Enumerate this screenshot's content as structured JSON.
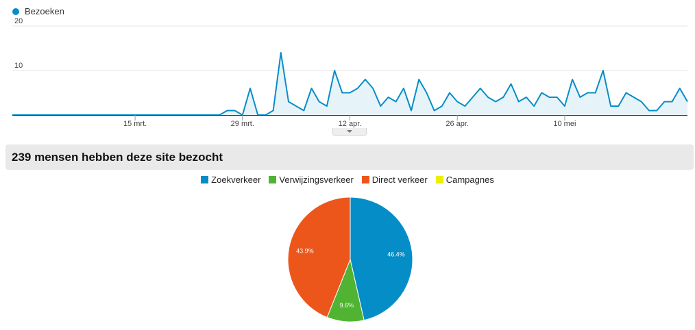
{
  "legend_top": {
    "label": "Bezoeken",
    "color": "#058dc7"
  },
  "summary": {
    "text": "239 mensen hebben deze site bezocht"
  },
  "colors": {
    "line": "#058dc7",
    "area": "#e6f3f9",
    "grid": "#e6e6e6",
    "zoekverkeer": "#058dc7",
    "verwijzingsverkeer": "#50b432",
    "direct": "#ed561b",
    "campagnes": "#edef00"
  },
  "chart_data": [
    {
      "type": "area",
      "series": [
        {
          "name": "Bezoeken",
          "values": [
            0,
            0,
            0,
            0,
            0,
            0,
            0,
            0,
            0,
            0,
            0,
            0,
            0,
            0,
            0,
            0,
            0,
            0,
            0,
            0,
            0,
            0,
            0,
            0,
            0,
            0,
            0,
            0,
            1,
            1,
            0,
            6,
            0,
            0,
            1,
            14,
            3,
            2,
            1,
            6,
            3,
            2,
            10,
            5,
            5,
            6,
            8,
            6,
            2,
            4,
            3,
            6,
            1,
            8,
            5,
            1,
            2,
            5,
            3,
            2,
            4,
            6,
            4,
            3,
            4,
            7,
            3,
            4,
            2,
            5,
            4,
            4,
            2,
            8,
            4,
            5,
            5,
            10,
            2,
            2,
            5,
            4,
            3,
            1,
            1,
            3,
            3,
            6,
            3
          ]
        }
      ],
      "x_ticks": [
        "15 mrt.",
        "29 mrt.",
        "12 apr.",
        "26 apr.",
        "10 mei"
      ],
      "x_tick_index": [
        16,
        30,
        44,
        58,
        72
      ],
      "y_ticks": [
        "10",
        "20"
      ],
      "ylim": [
        0,
        20
      ],
      "grid": true
    },
    {
      "type": "pie",
      "slices": [
        {
          "name": "Zoekverkeer",
          "value": 46.4,
          "label": "46.4%"
        },
        {
          "name": "Verwijzingsverkeer",
          "value": 9.6,
          "label": "9.6%"
        },
        {
          "name": "Direct verkeer",
          "value": 43.9,
          "label": "43.9%"
        },
        {
          "name": "Campagnes",
          "value": 0,
          "label": ""
        }
      ],
      "legend_position": "top"
    }
  ]
}
